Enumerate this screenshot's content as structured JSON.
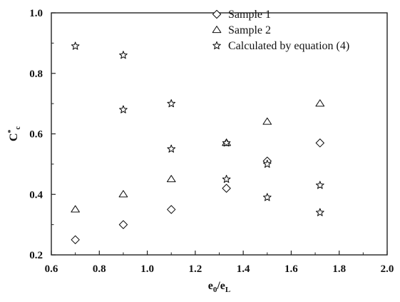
{
  "chart_data": {
    "type": "scatter",
    "title": "",
    "xlabel": {
      "base": "e",
      "sub1": "0",
      "sep": "/e",
      "sub2": "L"
    },
    "ylabel": {
      "base": "C",
      "sup": "*",
      "sub": "c"
    },
    "xlim": [
      0.6,
      2.0
    ],
    "ylim": [
      0.2,
      1.0
    ],
    "xticks": [
      0.6,
      0.8,
      1.0,
      1.2,
      1.4,
      1.6,
      1.8,
      2.0
    ],
    "xtick_labels": [
      "0.6",
      "0.8",
      "1.0",
      "1.2",
      "1.4",
      "1.6",
      "1.8",
      "2.0"
    ],
    "yticks": [
      0.2,
      0.4,
      0.6,
      0.8,
      1.0
    ],
    "ytick_labels": [
      "0.2",
      "0.4",
      "0.6",
      "0.8",
      "1.0"
    ],
    "grid": false,
    "legend_position": "top-right",
    "series": [
      {
        "name": "Sample 1",
        "marker": "diamond",
        "x": [
          0.7,
          0.9,
          1.1,
          1.33,
          1.5,
          1.72
        ],
        "y": [
          0.25,
          0.3,
          0.35,
          0.42,
          0.51,
          0.57
        ]
      },
      {
        "name": "Sample 2",
        "marker": "triangle",
        "x": [
          0.7,
          0.9,
          1.1,
          1.33,
          1.5,
          1.72
        ],
        "y": [
          0.35,
          0.4,
          0.45,
          0.57,
          0.64,
          0.7
        ]
      },
      {
        "name": "Calculated by equation (4)",
        "marker": "star",
        "x": [
          0.7,
          0.9,
          0.9,
          1.1,
          1.1,
          1.33,
          1.33,
          1.5,
          1.5,
          1.72,
          1.72
        ],
        "y": [
          0.89,
          0.86,
          0.68,
          0.7,
          0.55,
          0.57,
          0.45,
          0.5,
          0.39,
          0.43,
          0.34
        ]
      }
    ]
  }
}
